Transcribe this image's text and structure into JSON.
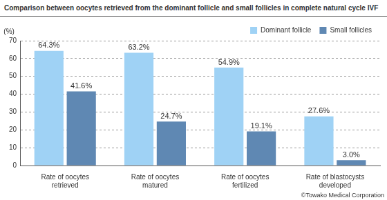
{
  "chart_data": {
    "type": "bar",
    "title": "Comparison between oocytes retrieved from the dominant follicle and small follicles in complete natural cycle IVF",
    "y_label": "(%)",
    "categories": [
      "Rate of oocytes retrieved",
      "Rate of oocytes matured",
      "Rate of oocytes fertilized",
      "Rate of blastocysts developed"
    ],
    "series": [
      {
        "name": "Dominant follicle",
        "color": "#9fd2f5",
        "values": [
          64.3,
          63.2,
          54.9,
          27.6
        ],
        "value_labels": [
          "64.3%",
          "63.2%",
          "54.9%",
          "27.6%"
        ]
      },
      {
        "name": "Small follicles",
        "color": "#5f88b3",
        "values": [
          41.6,
          24.7,
          19.1,
          3.0
        ],
        "value_labels": [
          "41.6%",
          "24.7%",
          "19.1%",
          "3.0%"
        ]
      }
    ],
    "ylim": [
      0,
      70
    ],
    "yticks": [
      0,
      10,
      20,
      30,
      40,
      50,
      60,
      70
    ],
    "grid": true,
    "legend": "top-right",
    "data_labels": true,
    "annotations": [
      "©Towako Medical Corporation"
    ]
  }
}
